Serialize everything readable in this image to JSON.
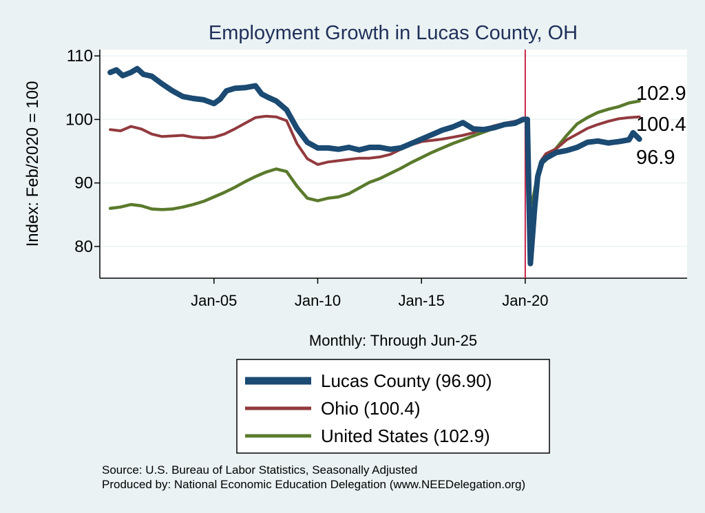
{
  "chart_data": {
    "type": "line",
    "title": "Employment Growth in Lucas  County, OH",
    "ylabel": "Index: Feb/2020 = 100",
    "xlabel": "Monthly: Through Jun-25",
    "ylim": [
      75,
      111
    ],
    "xlim": [
      1999.5,
      2027.8
    ],
    "yticks": [
      80,
      90,
      100,
      110
    ],
    "xticks": [
      {
        "x": 2005,
        "label": "Jan-05"
      },
      {
        "x": 2010,
        "label": "Jan-10"
      },
      {
        "x": 2015,
        "label": "Jan-15"
      },
      {
        "x": 2020,
        "label": "Jan-20"
      }
    ],
    "reference_line_x": 2020.0,
    "series": [
      {
        "name": "United States",
        "legend_label": "United States (102.9)",
        "end_label": "102.9",
        "color": "#5a7a2c",
        "points": [
          [
            2000.0,
            86.0
          ],
          [
            2000.5,
            86.2
          ],
          [
            2001.0,
            86.6
          ],
          [
            2001.5,
            86.4
          ],
          [
            2002.0,
            85.9
          ],
          [
            2002.5,
            85.8
          ],
          [
            2003.0,
            85.9
          ],
          [
            2003.5,
            86.2
          ],
          [
            2004.0,
            86.6
          ],
          [
            2004.5,
            87.1
          ],
          [
            2005.0,
            87.8
          ],
          [
            2005.5,
            88.5
          ],
          [
            2006.0,
            89.3
          ],
          [
            2006.5,
            90.2
          ],
          [
            2007.0,
            91.0
          ],
          [
            2007.5,
            91.7
          ],
          [
            2008.0,
            92.2
          ],
          [
            2008.5,
            91.8
          ],
          [
            2009.0,
            89.5
          ],
          [
            2009.5,
            87.6
          ],
          [
            2010.0,
            87.2
          ],
          [
            2010.5,
            87.6
          ],
          [
            2011.0,
            87.8
          ],
          [
            2011.5,
            88.3
          ],
          [
            2012.0,
            89.2
          ],
          [
            2012.5,
            90.1
          ],
          [
            2013.0,
            90.7
          ],
          [
            2013.5,
            91.5
          ],
          [
            2014.0,
            92.3
          ],
          [
            2014.5,
            93.2
          ],
          [
            2015.0,
            94.0
          ],
          [
            2015.5,
            94.8
          ],
          [
            2016.0,
            95.5
          ],
          [
            2016.5,
            96.2
          ],
          [
            2017.0,
            96.8
          ],
          [
            2017.5,
            97.4
          ],
          [
            2018.0,
            98.0
          ],
          [
            2018.5,
            98.6
          ],
          [
            2019.0,
            99.2
          ],
          [
            2019.5,
            99.6
          ],
          [
            2019.9,
            100.0
          ],
          [
            2020.1,
            100.0
          ],
          [
            2020.25,
            86.5
          ],
          [
            2020.4,
            88.0
          ],
          [
            2020.6,
            91.5
          ],
          [
            2020.8,
            93.0
          ],
          [
            2021.0,
            93.6
          ],
          [
            2021.5,
            95.5
          ],
          [
            2022.0,
            97.5
          ],
          [
            2022.5,
            99.3
          ],
          [
            2023.0,
            100.3
          ],
          [
            2023.5,
            101.1
          ],
          [
            2024.0,
            101.6
          ],
          [
            2024.5,
            102.0
          ],
          [
            2025.0,
            102.6
          ],
          [
            2025.5,
            102.9
          ]
        ]
      },
      {
        "name": "Ohio",
        "legend_label": "Ohio (100.4)",
        "end_label": "100.4",
        "color": "#923a3e",
        "points": [
          [
            2000.0,
            98.4
          ],
          [
            2000.5,
            98.2
          ],
          [
            2001.0,
            98.9
          ],
          [
            2001.5,
            98.5
          ],
          [
            2002.0,
            97.7
          ],
          [
            2002.5,
            97.3
          ],
          [
            2003.0,
            97.4
          ],
          [
            2003.5,
            97.5
          ],
          [
            2004.0,
            97.2
          ],
          [
            2004.5,
            97.1
          ],
          [
            2005.0,
            97.2
          ],
          [
            2005.5,
            97.7
          ],
          [
            2006.0,
            98.5
          ],
          [
            2006.5,
            99.4
          ],
          [
            2007.0,
            100.3
          ],
          [
            2007.5,
            100.5
          ],
          [
            2008.0,
            100.4
          ],
          [
            2008.5,
            99.8
          ],
          [
            2009.0,
            96.2
          ],
          [
            2009.5,
            93.8
          ],
          [
            2010.0,
            92.9
          ],
          [
            2010.5,
            93.3
          ],
          [
            2011.0,
            93.5
          ],
          [
            2011.5,
            93.7
          ],
          [
            2012.0,
            93.9
          ],
          [
            2012.5,
            93.9
          ],
          [
            2013.0,
            94.1
          ],
          [
            2013.5,
            94.5
          ],
          [
            2014.0,
            95.3
          ],
          [
            2014.5,
            96.0
          ],
          [
            2015.0,
            96.5
          ],
          [
            2015.5,
            96.7
          ],
          [
            2016.0,
            96.9
          ],
          [
            2016.5,
            97.2
          ],
          [
            2017.0,
            97.5
          ],
          [
            2017.5,
            97.9
          ],
          [
            2018.0,
            98.5
          ],
          [
            2018.5,
            99.0
          ],
          [
            2019.0,
            99.4
          ],
          [
            2019.5,
            99.7
          ],
          [
            2019.9,
            100.0
          ],
          [
            2020.1,
            100.0
          ],
          [
            2020.25,
            82.5
          ],
          [
            2020.4,
            86.0
          ],
          [
            2020.6,
            91.8
          ],
          [
            2020.8,
            93.7
          ],
          [
            2021.0,
            94.6
          ],
          [
            2021.5,
            95.4
          ],
          [
            2022.0,
            96.8
          ],
          [
            2022.5,
            97.7
          ],
          [
            2023.0,
            98.6
          ],
          [
            2023.5,
            99.2
          ],
          [
            2024.0,
            99.7
          ],
          [
            2024.5,
            100.1
          ],
          [
            2025.0,
            100.3
          ],
          [
            2025.5,
            100.4
          ]
        ]
      },
      {
        "name": "Lucas  County",
        "legend_label": "Lucas  County (96.90)",
        "end_label": "96.9",
        "color": "#1b4a72",
        "points": [
          [
            2000.0,
            107.4
          ],
          [
            2000.3,
            107.8
          ],
          [
            2000.6,
            106.9
          ],
          [
            2001.0,
            107.4
          ],
          [
            2001.3,
            108.0
          ],
          [
            2001.6,
            107.1
          ],
          [
            2002.0,
            106.8
          ],
          [
            2002.5,
            105.6
          ],
          [
            2003.0,
            104.5
          ],
          [
            2003.5,
            103.6
          ],
          [
            2004.0,
            103.3
          ],
          [
            2004.5,
            103.1
          ],
          [
            2005.0,
            102.5
          ],
          [
            2005.3,
            103.2
          ],
          [
            2005.6,
            104.5
          ],
          [
            2006.0,
            104.9
          ],
          [
            2006.5,
            105.0
          ],
          [
            2007.0,
            105.3
          ],
          [
            2007.3,
            104.0
          ],
          [
            2007.6,
            103.5
          ],
          [
            2008.0,
            102.9
          ],
          [
            2008.5,
            101.5
          ],
          [
            2009.0,
            98.6
          ],
          [
            2009.5,
            96.4
          ],
          [
            2010.0,
            95.5
          ],
          [
            2010.5,
            95.5
          ],
          [
            2011.0,
            95.3
          ],
          [
            2011.5,
            95.6
          ],
          [
            2012.0,
            95.2
          ],
          [
            2012.5,
            95.6
          ],
          [
            2013.0,
            95.6
          ],
          [
            2013.5,
            95.3
          ],
          [
            2014.0,
            95.5
          ],
          [
            2014.5,
            96.2
          ],
          [
            2015.0,
            96.9
          ],
          [
            2015.5,
            97.6
          ],
          [
            2016.0,
            98.3
          ],
          [
            2016.5,
            98.8
          ],
          [
            2017.0,
            99.5
          ],
          [
            2017.5,
            98.5
          ],
          [
            2018.0,
            98.4
          ],
          [
            2018.5,
            98.7
          ],
          [
            2019.0,
            99.2
          ],
          [
            2019.5,
            99.4
          ],
          [
            2019.9,
            100.0
          ],
          [
            2020.1,
            100.0
          ],
          [
            2020.25,
            77.3
          ],
          [
            2020.45,
            86.0
          ],
          [
            2020.6,
            91.0
          ],
          [
            2020.8,
            93.3
          ],
          [
            2021.0,
            93.9
          ],
          [
            2021.5,
            94.8
          ],
          [
            2022.0,
            95.1
          ],
          [
            2022.5,
            95.6
          ],
          [
            2023.0,
            96.4
          ],
          [
            2023.5,
            96.6
          ],
          [
            2024.0,
            96.3
          ],
          [
            2024.5,
            96.5
          ],
          [
            2025.0,
            96.8
          ],
          [
            2025.2,
            97.9
          ],
          [
            2025.5,
            96.9
          ]
        ]
      }
    ]
  },
  "source_line1": "Source: U.S. Bureau of Labor Statistics, Seasonally Adjusted",
  "source_line2": "Produced by: National Economic Education Delegation (www.NEEDelegation.org)"
}
